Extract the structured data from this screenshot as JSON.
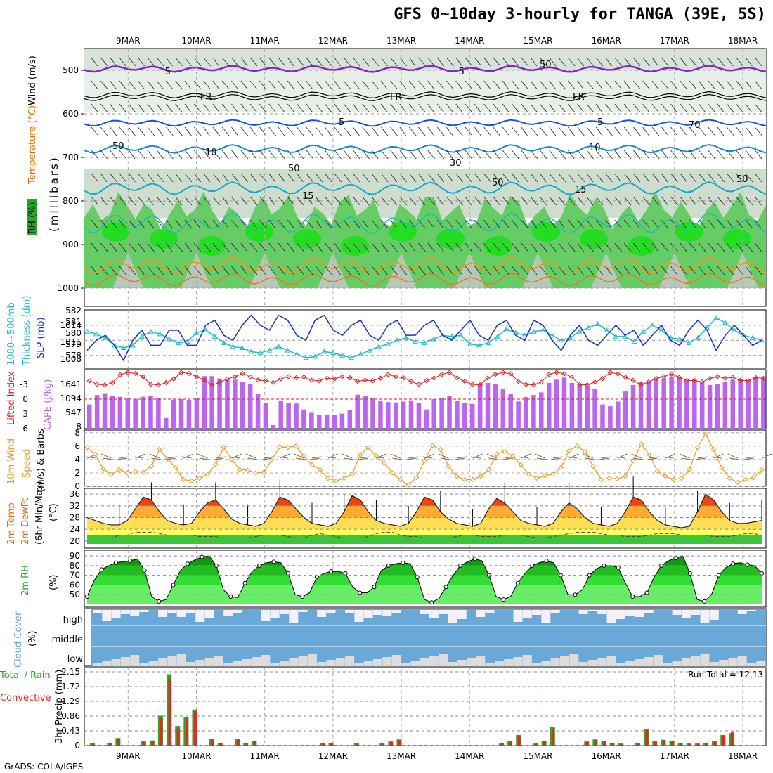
{
  "title": "GFS 0~10day 3-hourly for TANGA (39E, 5S)",
  "footer": "GrADS: COLA/IGES",
  "dates": [
    "9MAR",
    "10MAR",
    "11MAR",
    "12MAR",
    "13MAR",
    "14MAR",
    "15MAR",
    "16MAR",
    "17MAR",
    "18MAR"
  ],
  "colors": {
    "rh": "#22cc22",
    "temp": "#ee6600",
    "cape": "#bb66ee",
    "li": "#dd2222",
    "slp": "#1133cc",
    "thick": "#22bbcc",
    "wind": "#ee9922",
    "rain": "#ee2222",
    "precip": "#22aa22",
    "cloud": "#6aa8d8"
  },
  "panels": {
    "upper": {
      "ylabel": "(millibars)",
      "labels": [
        "RH (%)",
        "Temperature (°C)",
        "Wind (m/s)"
      ],
      "yticks": [
        "500",
        "600",
        "700",
        "800",
        "900",
        "1000"
      ],
      "contour_labels": [
        "-5",
        "-5",
        "FR",
        "FR",
        "FR",
        "5",
        "5",
        "10",
        "10",
        "15",
        "15",
        "50",
        "50",
        "30",
        "50",
        "50",
        "70",
        "50"
      ]
    },
    "slp": {
      "labels": [
        "1000~500mb",
        "Thickness (dm)",
        "SLP (mb)"
      ],
      "left_ticks": [
        "582",
        "581",
        "580",
        "579",
        "578"
      ],
      "right_ticks": [
        "1014",
        "1011",
        "1008"
      ]
    },
    "cape": {
      "labels": [
        "Lifted Index",
        "CAPE (J/kg)"
      ],
      "left_ticks": [
        "-3",
        "0",
        "3",
        "6"
      ],
      "right_ticks": [
        "1641",
        "1094",
        "547",
        "8"
      ]
    },
    "wind": {
      "labels": [
        "10m Wind",
        "Speed",
        "(m/s) & Barbs"
      ],
      "ticks": [
        "0",
        "2",
        "4",
        "6",
        "8"
      ]
    },
    "temp": {
      "labels": [
        "2m Temp",
        "2m DewPt",
        "(6hr Min/Max)",
        "(°C)"
      ],
      "ticks": [
        "36",
        "32",
        "28",
        "24",
        "20"
      ]
    },
    "rh": {
      "labels": [
        "2m RH",
        "(%)"
      ],
      "ticks": [
        "90",
        "80",
        "70",
        "60",
        "50"
      ]
    },
    "cloud": {
      "labels": [
        "Cloud Cover",
        "(%)"
      ],
      "levels": [
        "high",
        "middle",
        "low"
      ]
    },
    "precip": {
      "labels": [
        "Total / Rain",
        "Convective",
        "3hr Precip (mm)"
      ],
      "ticks": [
        "2.15",
        "1.72",
        "1.29",
        "0.86",
        "0.43",
        "0"
      ],
      "run_total": "Run Total = 12.13"
    }
  },
  "chart_data": [
    {
      "type": "line",
      "panel": "slp",
      "series": [
        {
          "name": "SLP (mb)",
          "values": [
            1009,
            1011,
            1012,
            1010,
            1007,
            1011,
            1013,
            1010,
            1010,
            1013,
            1013,
            1010,
            1010,
            1014,
            1015,
            1012,
            1011,
            1014,
            1016,
            1014,
            1013,
            1016,
            1015,
            1012,
            1011,
            1015,
            1016,
            1013,
            1012,
            1014,
            1015,
            1012,
            1011,
            1014,
            1015,
            1012,
            1012,
            1014,
            1015,
            1012,
            1011,
            1013,
            1015,
            1012,
            1011,
            1014,
            1015,
            1012,
            1011,
            1015,
            1014,
            1011,
            1009,
            1012,
            1014,
            1011,
            1010,
            1012,
            1014,
            1012,
            1013,
            1010,
            1012,
            1014,
            1011,
            1010,
            1013,
            1015,
            1013,
            1009,
            1012,
            1014,
            1012,
            1010,
            1011
          ]
        },
        {
          "name": "Thickness (dm)",
          "values": [
            580.5,
            580.3,
            580.0,
            579.4,
            579.2,
            579.4,
            580.1,
            580.5,
            580.3,
            579.9,
            579.6,
            579.7,
            580.4,
            580.6,
            580.1,
            579.6,
            579.3,
            579.2,
            578.9,
            578.8,
            579.0,
            579.3,
            579.0,
            578.7,
            578.4,
            578.5,
            578.9,
            578.8,
            578.6,
            578.4,
            578.7,
            579.0,
            579.3,
            579.5,
            579.8,
            580.0,
            579.7,
            579.6,
            579.9,
            580.2,
            580.1,
            580.2,
            579.5,
            579.4,
            579.6,
            580.1,
            580.7,
            580.4,
            580.2,
            580.5,
            580.6,
            580.2,
            579.8,
            580.0,
            580.5,
            580.8,
            581.1,
            580.6,
            580.1,
            580.1,
            579.7,
            580.5,
            581.0,
            580.6,
            580.0,
            579.9,
            579.6,
            580.0,
            580.8,
            581.6,
            581.2,
            580.6,
            580.2,
            580.0,
            579.8
          ]
        }
      ]
    },
    {
      "type": "bar",
      "panel": "cape",
      "series": [
        {
          "name": "CAPE (J/kg)",
          "values": [
            820,
            1140,
            1200,
            1120,
            1080,
            1030,
            1010,
            1080,
            1120,
            1040,
            360,
            980,
            1000,
            980,
            1030,
            1780,
            1780,
            1700,
            1660,
            1660,
            1590,
            1510,
            1190,
            860,
            120,
            930,
            860,
            850,
            650,
            560,
            460,
            480,
            460,
            510,
            640,
            1150,
            1100,
            1050,
            950,
            900,
            890,
            920,
            960,
            880,
            650,
            1000,
            1050,
            1100,
            950,
            860,
            840,
            1500,
            1550,
            1520,
            1340,
            1180,
            920,
            1070,
            1140,
            1230,
            1550,
            1660,
            1730,
            1550,
            1520,
            1440,
            1340,
            820,
            760,
            920,
            1260,
            1480,
            1570,
            1600,
            1680,
            1700,
            1770,
            1740,
            1630,
            1660,
            1580,
            1480,
            1500,
            1580,
            1650,
            1670,
            1630,
            1720,
            1750
          ]
        }
      ]
    },
    {
      "type": "line",
      "panel": "wind",
      "series": [
        {
          "name": "10m Wind Speed",
          "values": [
            5.8,
            4.8,
            2.6,
            1.8,
            2.5,
            2.0,
            2.2,
            2.1,
            3.0,
            5.5,
            4.1,
            2.8,
            1.0,
            0.8,
            1.2,
            1.8,
            3.3,
            5.8,
            4.0,
            2.5,
            2.4,
            2.0,
            2.1,
            4.0,
            5.9,
            5.8,
            6.0,
            4.5,
            3.2,
            2.5,
            1.2,
            0.8,
            1.2,
            1.8,
            4.7,
            5.8,
            4.5,
            3.5,
            2.0,
            1.0,
            0.2,
            1.3,
            3.8,
            6.1,
            5.5,
            3.0,
            1.5,
            1.0,
            1.0,
            1.5,
            2.5,
            4.8,
            5.2,
            4.5,
            3.2,
            1.8,
            1.2,
            1.6,
            1.8,
            2.8,
            5.3,
            6.0,
            5.2,
            3.0,
            1.0,
            1.2,
            1.1,
            1.5,
            3.8,
            6.3,
            4.7,
            2.3,
            1.5,
            1.0,
            1.2,
            2.5,
            5.8,
            7.8,
            5.5,
            2.8,
            1.2,
            0.6,
            1.0,
            1.3,
            2.5
          ]
        }
      ]
    },
    {
      "type": "area",
      "panel": "temp",
      "series": [
        {
          "name": "2m Temp",
          "values": [
            28,
            27,
            26,
            25.5,
            25.5,
            27,
            31,
            35,
            34,
            30,
            27,
            26,
            25.5,
            26,
            30,
            33,
            34,
            31,
            27.5,
            26,
            25.5,
            25,
            26,
            30,
            35,
            34,
            31,
            28,
            26,
            25.5,
            25,
            26,
            30,
            35.5,
            34,
            30,
            27,
            26,
            25.5,
            25,
            26,
            30,
            35,
            34,
            30,
            27.5,
            26,
            25.5,
            25,
            26,
            31,
            34.5,
            33,
            30,
            27,
            26,
            25.5,
            25,
            26,
            30,
            33,
            31,
            28,
            26,
            25.5,
            25,
            26,
            30,
            35,
            34,
            30,
            27,
            25.5,
            25,
            24.5,
            25,
            30,
            36,
            34,
            30,
            27,
            26,
            26,
            26.5,
            27
          ]
        },
        {
          "name": "2m DewPt",
          "values": [
            21,
            21,
            21,
            21,
            22,
            22,
            23,
            23,
            23,
            22.5,
            22,
            22,
            22,
            22,
            21.5,
            21.5,
            21.5,
            21,
            21,
            21,
            21,
            21.5,
            22,
            22,
            22,
            21.5,
            21,
            21,
            22,
            22.5,
            22,
            21.5,
            21,
            21,
            21,
            21.5,
            22.5,
            23,
            23,
            22,
            21.5,
            21.5,
            21,
            21,
            21,
            21,
            21.5,
            22,
            22,
            21.5,
            21.5,
            21.5,
            22,
            22,
            22,
            21.5,
            21,
            21,
            21.5,
            22,
            22.5,
            23,
            23,
            23,
            22.5,
            22,
            22,
            21.5,
            21.5,
            21.5,
            22,
            22.5,
            22.5,
            22.5,
            22,
            22,
            22,
            22,
            21.5,
            21.5,
            21.5,
            22,
            22.5,
            22.5,
            22
          ]
        }
      ]
    },
    {
      "type": "area",
      "panel": "rh",
      "series": [
        {
          "name": "2m RH",
          "values": [
            48,
            65,
            76,
            80,
            83,
            84,
            85,
            87,
            75,
            48,
            43,
            45,
            60,
            75,
            82,
            86,
            89,
            90,
            80,
            55,
            48,
            47,
            62,
            74,
            80,
            83,
            84,
            83,
            72,
            50,
            48,
            52,
            68,
            72,
            74,
            74,
            72,
            58,
            52,
            52,
            58,
            75,
            80,
            82,
            83,
            82,
            68,
            45,
            42,
            46,
            58,
            70,
            80,
            84,
            87,
            85,
            70,
            48,
            45,
            48,
            62,
            72,
            80,
            83,
            85,
            83,
            70,
            50,
            50,
            55,
            70,
            77,
            80,
            80,
            78,
            62,
            48,
            48,
            52,
            68,
            80,
            85,
            88,
            90,
            72,
            45,
            43,
            50,
            70,
            78,
            82,
            83,
            81,
            80,
            72
          ]
        }
      ]
    },
    {
      "type": "bar",
      "panel": "precip",
      "series": [
        {
          "name": "Total",
          "values": [
            0.07,
            0,
            0.08,
            0.22,
            0,
            0,
            0.13,
            0.15,
            0.87,
            2.08,
            0.57,
            0.82,
            1.05,
            0,
            0.19,
            0.07,
            0,
            0.19,
            0.08,
            0.13,
            0,
            0,
            0,
            0,
            0,
            0,
            0,
            0.06,
            0.07,
            0,
            0,
            0.07,
            0,
            0,
            0.07,
            0.12,
            0.18,
            0,
            0,
            0,
            0,
            0,
            0,
            0,
            0,
            0,
            0,
            0,
            0.07,
            0.13,
            0.31,
            0,
            0.06,
            0.14,
            0.55,
            0,
            0,
            0,
            0.12,
            0.18,
            0.13,
            0.07,
            0.06,
            0,
            0.07,
            0.48,
            0.13,
            0.17,
            0.13,
            0.07,
            0.06,
            0.06,
            0.07,
            0.13,
            0.31,
            0.36
          ]
        },
        {
          "name": "Convective",
          "values": [
            0.07,
            0,
            0.07,
            0.2,
            0,
            0,
            0.12,
            0.13,
            0.8,
            1.95,
            0.5,
            0.78,
            1.0,
            0,
            0.17,
            0.06,
            0,
            0.18,
            0.08,
            0.12,
            0,
            0,
            0,
            0,
            0,
            0,
            0,
            0.06,
            0.06,
            0.05,
            0,
            0.06,
            0,
            0.05,
            0.06,
            0.1,
            0.15,
            0.05,
            0,
            0,
            0,
            0,
            0,
            0,
            0,
            0,
            0,
            0,
            0.06,
            0.11,
            0.28,
            0.04,
            0.05,
            0.12,
            0.5,
            0,
            0,
            0,
            0.1,
            0.16,
            0.11,
            0.06,
            0.05,
            0.04,
            0.06,
            0.45,
            0.11,
            0.15,
            0.11,
            0.06,
            0.05,
            0.05,
            0.06,
            0.11,
            0.28,
            0.4
          ]
        }
      ]
    }
  ]
}
